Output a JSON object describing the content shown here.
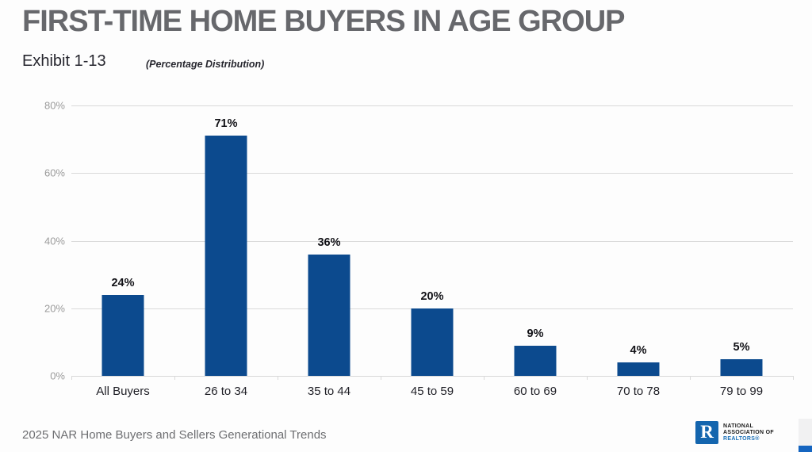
{
  "header": {
    "title": "FIRST-TIME HOME BUYERS IN AGE GROUP",
    "exhibit": "Exhibit 1-13",
    "subtitle": "(Percentage Distribution)"
  },
  "chart_data": {
    "type": "bar",
    "title": "FIRST-TIME HOME BUYERS IN AGE GROUP",
    "subtitle": "(Percentage Distribution)",
    "categories": [
      "All Buyers",
      "26 to 34",
      "35 to 44",
      "45 to 59",
      "60 to 69",
      "70 to 78",
      "79 to 99"
    ],
    "values": [
      24,
      71,
      36,
      20,
      9,
      4,
      5
    ],
    "data_labels": [
      "24%",
      "71%",
      "36%",
      "20%",
      "9%",
      "4%",
      "5%"
    ],
    "xlabel": "",
    "ylabel": "",
    "ylim": [
      0,
      80
    ],
    "ytick_values": [
      0,
      20,
      40,
      60,
      80
    ],
    "ytick_labels": [
      "0%",
      "20%",
      "40%",
      "60%",
      "80%"
    ],
    "grid": true,
    "legend": false,
    "bar_color": "#0c4a8e"
  },
  "footer": {
    "source": "2025 NAR Home Buyers and Sellers Generational Trends",
    "logo": {
      "mark": "R",
      "line1": "NATIONAL",
      "line2": "ASSOCIATION OF",
      "line3": "REALTORS®"
    }
  },
  "colors": {
    "bar": "#0c4a8e",
    "title_text": "#67686c",
    "gridline": "#d9d9d9",
    "axis_label": "#9b9b9b",
    "logo_square": "#1465ae",
    "logo_blue_text": "#1d71b8",
    "edge_accent": "#1565c0"
  }
}
